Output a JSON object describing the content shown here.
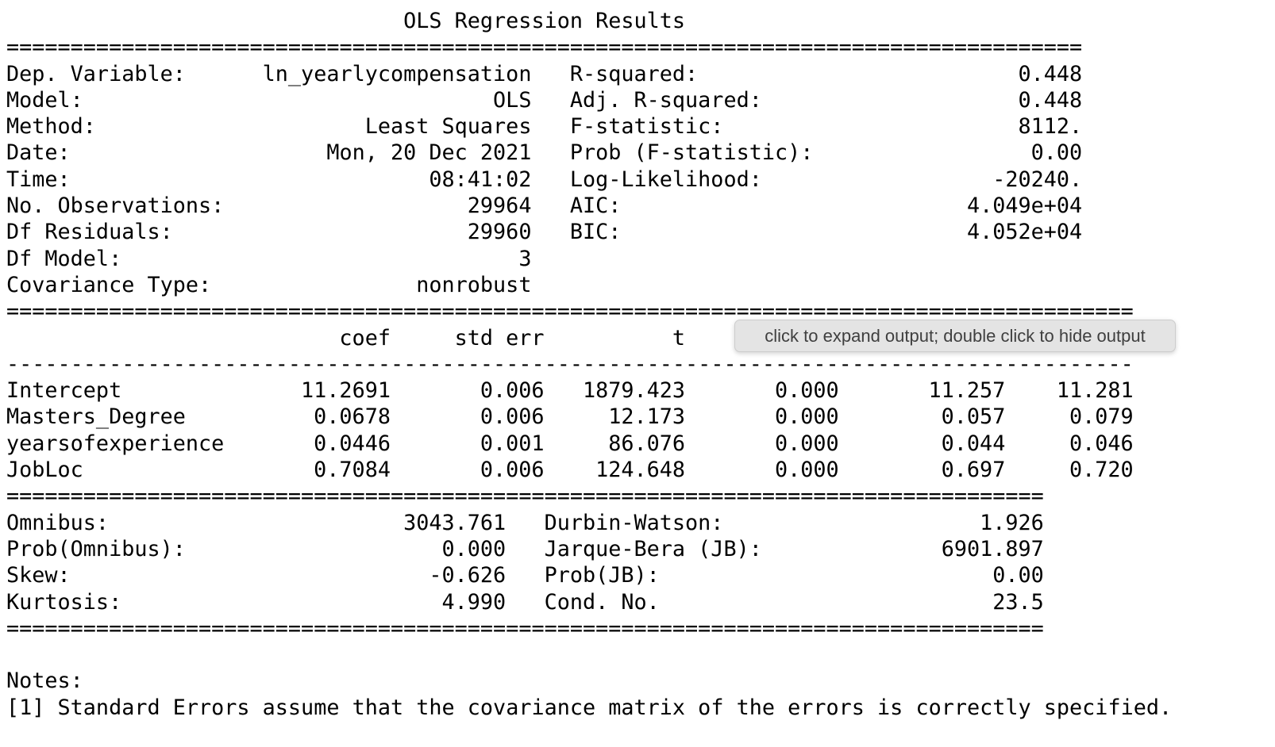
{
  "tooltip": {
    "text": "click to expand output; double click to hide output"
  },
  "report": {
    "title": "OLS Regression Results",
    "separators": {
      "top": {
        "char": "=",
        "count": 84
      },
      "coef_top": {
        "char": "=",
        "count": 88
      },
      "coef_under": {
        "char": "-",
        "count": 88
      },
      "diag_top": {
        "char": "=",
        "count": 81
      },
      "diag_bottom": {
        "char": "=",
        "count": 81
      }
    },
    "info_table": {
      "rows": [
        {
          "llabel": "Dep. Variable:",
          "lvalue": "ln_yearlycompensation",
          "rlabel": "R-squared:",
          "rvalue": "0.448"
        },
        {
          "llabel": "Model:",
          "lvalue": "OLS",
          "rlabel": "Adj. R-squared:",
          "rvalue": "0.448"
        },
        {
          "llabel": "Method:",
          "lvalue": "Least Squares",
          "rlabel": "F-statistic:",
          "rvalue": "8112."
        },
        {
          "llabel": "Date:",
          "lvalue": "Mon, 20 Dec 2021",
          "rlabel": "Prob (F-statistic):",
          "rvalue": "0.00"
        },
        {
          "llabel": "Time:",
          "lvalue": "08:41:02",
          "rlabel": "Log-Likelihood:",
          "rvalue": "-20240."
        },
        {
          "llabel": "No. Observations:",
          "lvalue": "29964",
          "rlabel": "AIC:",
          "rvalue": "4.049e+04"
        },
        {
          "llabel": "Df Residuals:",
          "lvalue": "29960",
          "rlabel": "BIC:",
          "rvalue": "4.052e+04"
        },
        {
          "llabel": "Df Model:",
          "lvalue": "3",
          "rlabel": "",
          "rvalue": ""
        },
        {
          "llabel": "Covariance Type:",
          "lvalue": "nonrobust",
          "rlabel": "",
          "rvalue": ""
        }
      ]
    },
    "coef_table": {
      "header": {
        "stub": "",
        "coef": "coef",
        "std_err": "std err",
        "t": "t",
        "p": "",
        "ci_low": "",
        "ci_high": ""
      },
      "rows": [
        {
          "name": "Intercept",
          "coef": "11.2691",
          "std_err": "0.006",
          "t": "1879.423",
          "p": "0.000",
          "ci_low": "11.257",
          "ci_high": "11.281"
        },
        {
          "name": "Masters_Degree",
          "coef": "0.0678",
          "std_err": "0.006",
          "t": "12.173",
          "p": "0.000",
          "ci_low": "0.057",
          "ci_high": "0.079"
        },
        {
          "name": "yearsofexperience",
          "coef": "0.0446",
          "std_err": "0.001",
          "t": "86.076",
          "p": "0.000",
          "ci_low": "0.044",
          "ci_high": "0.046"
        },
        {
          "name": "JobLoc",
          "coef": "0.7084",
          "std_err": "0.006",
          "t": "124.648",
          "p": "0.000",
          "ci_low": "0.697",
          "ci_high": "0.720"
        }
      ]
    },
    "diagnostics_table": {
      "rows": [
        {
          "llabel": "Omnibus:",
          "lvalue": "3043.761",
          "rlabel": "Durbin-Watson:",
          "rvalue": "1.926"
        },
        {
          "llabel": "Prob(Omnibus):",
          "lvalue": "0.000",
          "rlabel": "Jarque-Bera (JB):",
          "rvalue": "6901.897"
        },
        {
          "llabel": "Skew:",
          "lvalue": "-0.626",
          "rlabel": "Prob(JB):",
          "rvalue": "0.00"
        },
        {
          "llabel": "Kurtosis:",
          "lvalue": "4.990",
          "rlabel": "Cond. No.",
          "rvalue": "23.5"
        }
      ]
    },
    "notes": {
      "heading": "Notes:",
      "line1": "[1] Standard Errors assume that the covariance matrix of the errors is correctly specified."
    }
  }
}
